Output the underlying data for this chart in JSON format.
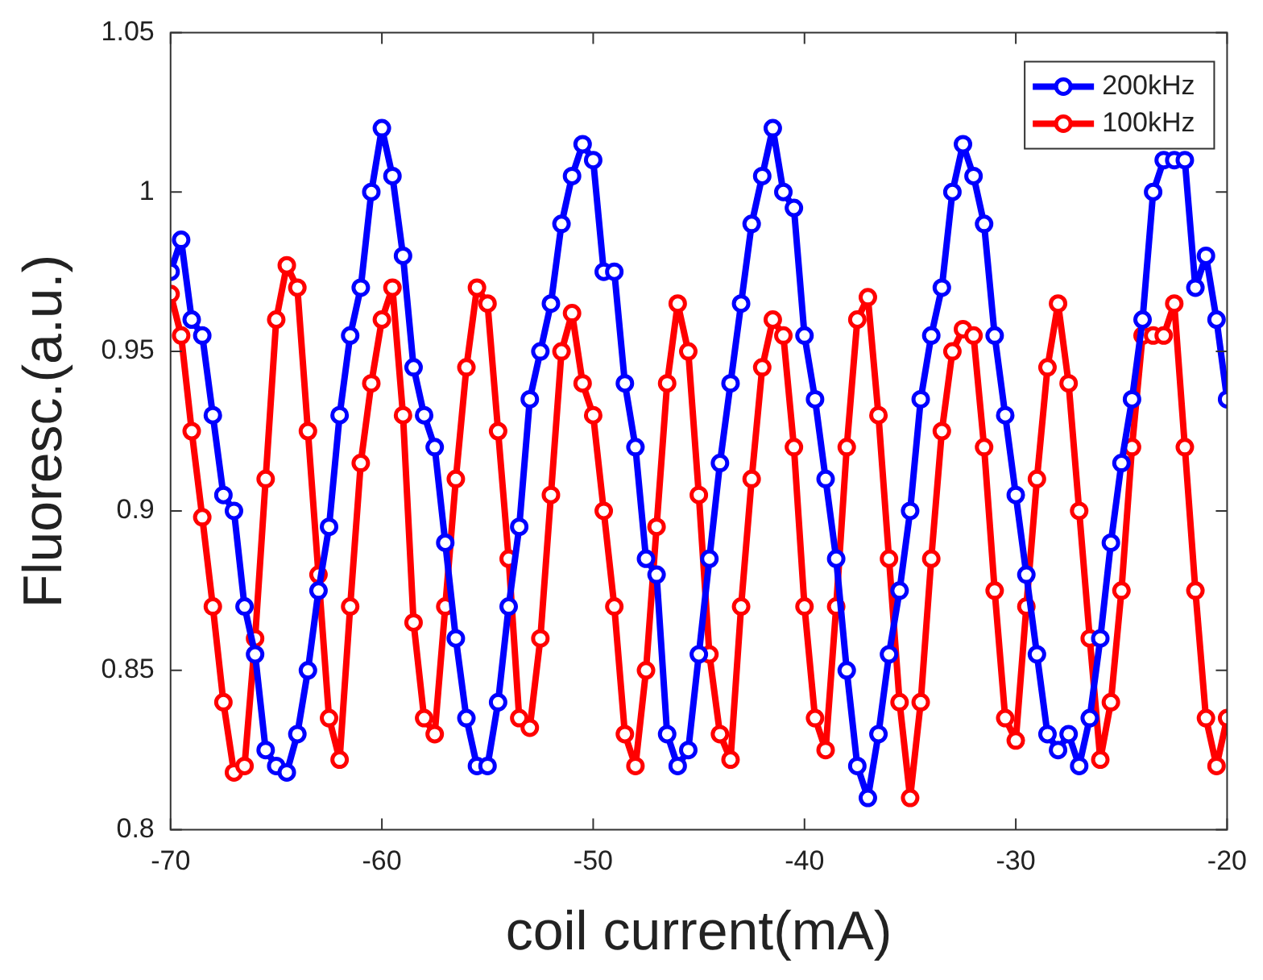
{
  "chart_data": {
    "type": "line",
    "xlabel": "coil current(mA)",
    "ylabel": "Fluoresc.(a.u.)",
    "x": [
      -70,
      -69.5,
      -69,
      -68.5,
      -68,
      -67.5,
      -67,
      -66.5,
      -66,
      -65.5,
      -65,
      -64.5,
      -64,
      -63.5,
      -63,
      -62.5,
      -62,
      -61.5,
      -61,
      -60.5,
      -60,
      -59.5,
      -59,
      -58.5,
      -58,
      -57.5,
      -57,
      -56.5,
      -56,
      -55.5,
      -55,
      -54.5,
      -54,
      -53.5,
      -53,
      -52.5,
      -52,
      -51.5,
      -51,
      -50.5,
      -50,
      -49.5,
      -49,
      -48.5,
      -48,
      -47.5,
      -47,
      -46.5,
      -46,
      -45.5,
      -45,
      -44.5,
      -44,
      -43.5,
      -43,
      -42.5,
      -42,
      -41.5,
      -41,
      -40.5,
      -40,
      -39.5,
      -39,
      -38.5,
      -38,
      -37.5,
      -37,
      -36.5,
      -36,
      -35.5,
      -35,
      -34.5,
      -34,
      -33.5,
      -33,
      -32.5,
      -32,
      -31.5,
      -31,
      -30.5,
      -30,
      -29.5,
      -29,
      -28.5,
      -28,
      -27.5,
      -27,
      -26.5,
      -26,
      -25.5,
      -25,
      -24.5,
      -24,
      -23.5,
      -23,
      -22.5,
      -22,
      -21.5,
      -21,
      -20.5,
      -20
    ],
    "series": [
      {
        "name": "200kHz",
        "color": "#0000ff",
        "values": [
          0.975,
          0.985,
          0.96,
          0.955,
          0.93,
          0.905,
          0.9,
          0.87,
          0.855,
          0.825,
          0.82,
          0.818,
          0.83,
          0.85,
          0.875,
          0.895,
          0.93,
          0.955,
          0.97,
          1.0,
          1.02,
          1.005,
          0.98,
          0.945,
          0.93,
          0.92,
          0.89,
          0.86,
          0.835,
          0.82,
          0.82,
          0.84,
          0.87,
          0.895,
          0.935,
          0.95,
          0.965,
          0.99,
          1.005,
          1.015,
          1.01,
          0.975,
          0.975,
          0.94,
          0.92,
          0.885,
          0.88,
          0.83,
          0.82,
          0.825,
          0.855,
          0.885,
          0.915,
          0.94,
          0.965,
          0.99,
          1.005,
          1.02,
          1.0,
          0.995,
          0.955,
          0.935,
          0.91,
          0.885,
          0.85,
          0.82,
          0.81,
          0.83,
          0.855,
          0.875,
          0.9,
          0.935,
          0.955,
          0.97,
          1.0,
          1.015,
          1.005,
          0.99,
          0.955,
          0.93,
          0.905,
          0.88,
          0.855,
          0.83,
          0.825,
          0.83,
          0.82,
          0.835,
          0.86,
          0.89,
          0.915,
          0.935,
          0.96,
          1.0,
          1.01,
          1.01,
          1.01,
          0.97,
          0.98,
          0.96,
          0.935
        ]
      },
      {
        "name": "100kHz",
        "color": "#ff0000",
        "values": [
          0.968,
          0.955,
          0.925,
          0.898,
          0.87,
          0.84,
          0.818,
          0.82,
          0.86,
          0.91,
          0.96,
          0.977,
          0.97,
          0.925,
          0.88,
          0.835,
          0.822,
          0.87,
          0.915,
          0.94,
          0.96,
          0.97,
          0.93,
          0.865,
          0.835,
          0.83,
          0.87,
          0.91,
          0.945,
          0.97,
          0.965,
          0.925,
          0.885,
          0.835,
          0.832,
          0.86,
          0.905,
          0.95,
          0.962,
          0.94,
          0.93,
          0.9,
          0.87,
          0.83,
          0.82,
          0.85,
          0.895,
          0.94,
          0.965,
          0.95,
          0.905,
          0.855,
          0.83,
          0.822,
          0.87,
          0.91,
          0.945,
          0.96,
          0.955,
          0.92,
          0.87,
          0.835,
          0.825,
          0.87,
          0.92,
          0.96,
          0.967,
          0.93,
          0.885,
          0.84,
          0.81,
          0.84,
          0.885,
          0.925,
          0.95,
          0.957,
          0.955,
          0.92,
          0.875,
          0.835,
          0.828,
          0.87,
          0.91,
          0.945,
          0.965,
          0.94,
          0.9,
          0.86,
          0.822,
          0.84,
          0.875,
          0.92,
          0.955,
          0.955,
          0.955,
          0.965,
          0.92,
          0.875,
          0.835,
          0.82,
          0.835
        ]
      }
    ],
    "xlim": [
      -70,
      -20
    ],
    "xticks": [
      -70,
      -60,
      -50,
      -40,
      -30,
      -20
    ],
    "ylim": [
      0.8,
      1.05
    ],
    "yticks": [
      0.8,
      0.85,
      0.9,
      0.95,
      1,
      1.05
    ],
    "grid": false,
    "legend": "top right",
    "marker": "circle",
    "line_style": "solid"
  }
}
